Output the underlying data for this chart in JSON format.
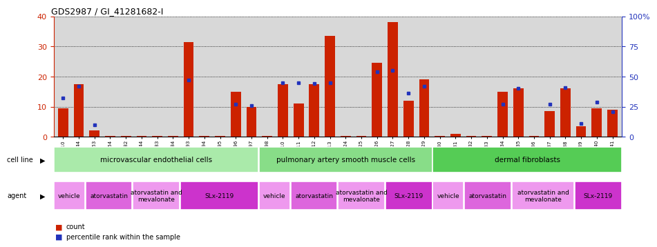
{
  "title": "GDS2987 / GI_41281682-I",
  "samples": [
    "GSM214810",
    "GSM215244",
    "GSM215253",
    "GSM215254",
    "GSM215282",
    "GSM215344",
    "GSM215283",
    "GSM215284",
    "GSM215293",
    "GSM215294",
    "GSM215295",
    "GSM215296",
    "GSM215297",
    "GSM215298",
    "GSM215310",
    "GSM215311",
    "GSM215312",
    "GSM215313",
    "GSM215324",
    "GSM215325",
    "GSM215326",
    "GSM215327",
    "GSM215328",
    "GSM215329",
    "GSM215330",
    "GSM215331",
    "GSM215332",
    "GSM215333",
    "GSM215334",
    "GSM215335",
    "GSM215336",
    "GSM215337",
    "GSM215338",
    "GSM215339",
    "GSM215340",
    "GSM215341"
  ],
  "counts": [
    9.5,
    17.5,
    2.0,
    0.3,
    0.3,
    0.3,
    0.3,
    0.3,
    31.5,
    0.3,
    0.3,
    15.0,
    10.0,
    0.3,
    17.5,
    11.0,
    17.5,
    33.5,
    0.3,
    0.3,
    24.5,
    38.0,
    12.0,
    19.0,
    0.3,
    1.0,
    0.3,
    0.3,
    15.0,
    16.0,
    0.3,
    8.5,
    16.0,
    3.5,
    9.5,
    9.0
  ],
  "percentile_ranks": [
    32,
    42,
    10,
    null,
    null,
    null,
    null,
    null,
    47,
    null,
    null,
    27,
    26,
    null,
    45,
    45,
    44,
    45,
    null,
    null,
    54,
    55,
    36,
    42,
    null,
    null,
    null,
    null,
    27,
    40,
    null,
    27,
    41,
    11,
    29,
    21
  ],
  "bar_color": "#cc2200",
  "blue_color": "#2233bb",
  "ylim_left": [
    0,
    40
  ],
  "ylim_right": [
    0,
    100
  ],
  "yticks_left": [
    0,
    10,
    20,
    30,
    40
  ],
  "yticks_right": [
    0,
    25,
    50,
    75,
    100
  ],
  "bg_color": "#d8d8d8",
  "cell_line_regions": [
    {
      "label": "microvascular endothelial cells",
      "start": 0,
      "end": 13,
      "color": "#aaeaaa"
    },
    {
      "label": "pulmonary artery smooth muscle cells",
      "start": 13,
      "end": 24,
      "color": "#88dd88"
    },
    {
      "label": "dermal fibroblasts",
      "start": 24,
      "end": 36,
      "color": "#55cc55"
    }
  ],
  "agent_regions": [
    {
      "label": "vehicle",
      "start": 0,
      "end": 2,
      "color": "#ee99ee"
    },
    {
      "label": "atorvastatin",
      "start": 2,
      "end": 5,
      "color": "#dd66dd"
    },
    {
      "label": "atorvastatin and\nmevalonate",
      "start": 5,
      "end": 8,
      "color": "#ee99ee"
    },
    {
      "label": "SLx-2119",
      "start": 8,
      "end": 13,
      "color": "#cc33cc"
    },
    {
      "label": "vehicle",
      "start": 13,
      "end": 15,
      "color": "#ee99ee"
    },
    {
      "label": "atorvastatin",
      "start": 15,
      "end": 18,
      "color": "#dd66dd"
    },
    {
      "label": "atorvastatin and\nmevalonate",
      "start": 18,
      "end": 21,
      "color": "#ee99ee"
    },
    {
      "label": "SLx-2119",
      "start": 21,
      "end": 24,
      "color": "#cc33cc"
    },
    {
      "label": "vehicle",
      "start": 24,
      "end": 26,
      "color": "#ee99ee"
    },
    {
      "label": "atorvastatin",
      "start": 26,
      "end": 29,
      "color": "#dd66dd"
    },
    {
      "label": "atorvastatin and\nmevalonate",
      "start": 29,
      "end": 33,
      "color": "#ee99ee"
    },
    {
      "label": "SLx-2119",
      "start": 33,
      "end": 36,
      "color": "#cc33cc"
    }
  ]
}
